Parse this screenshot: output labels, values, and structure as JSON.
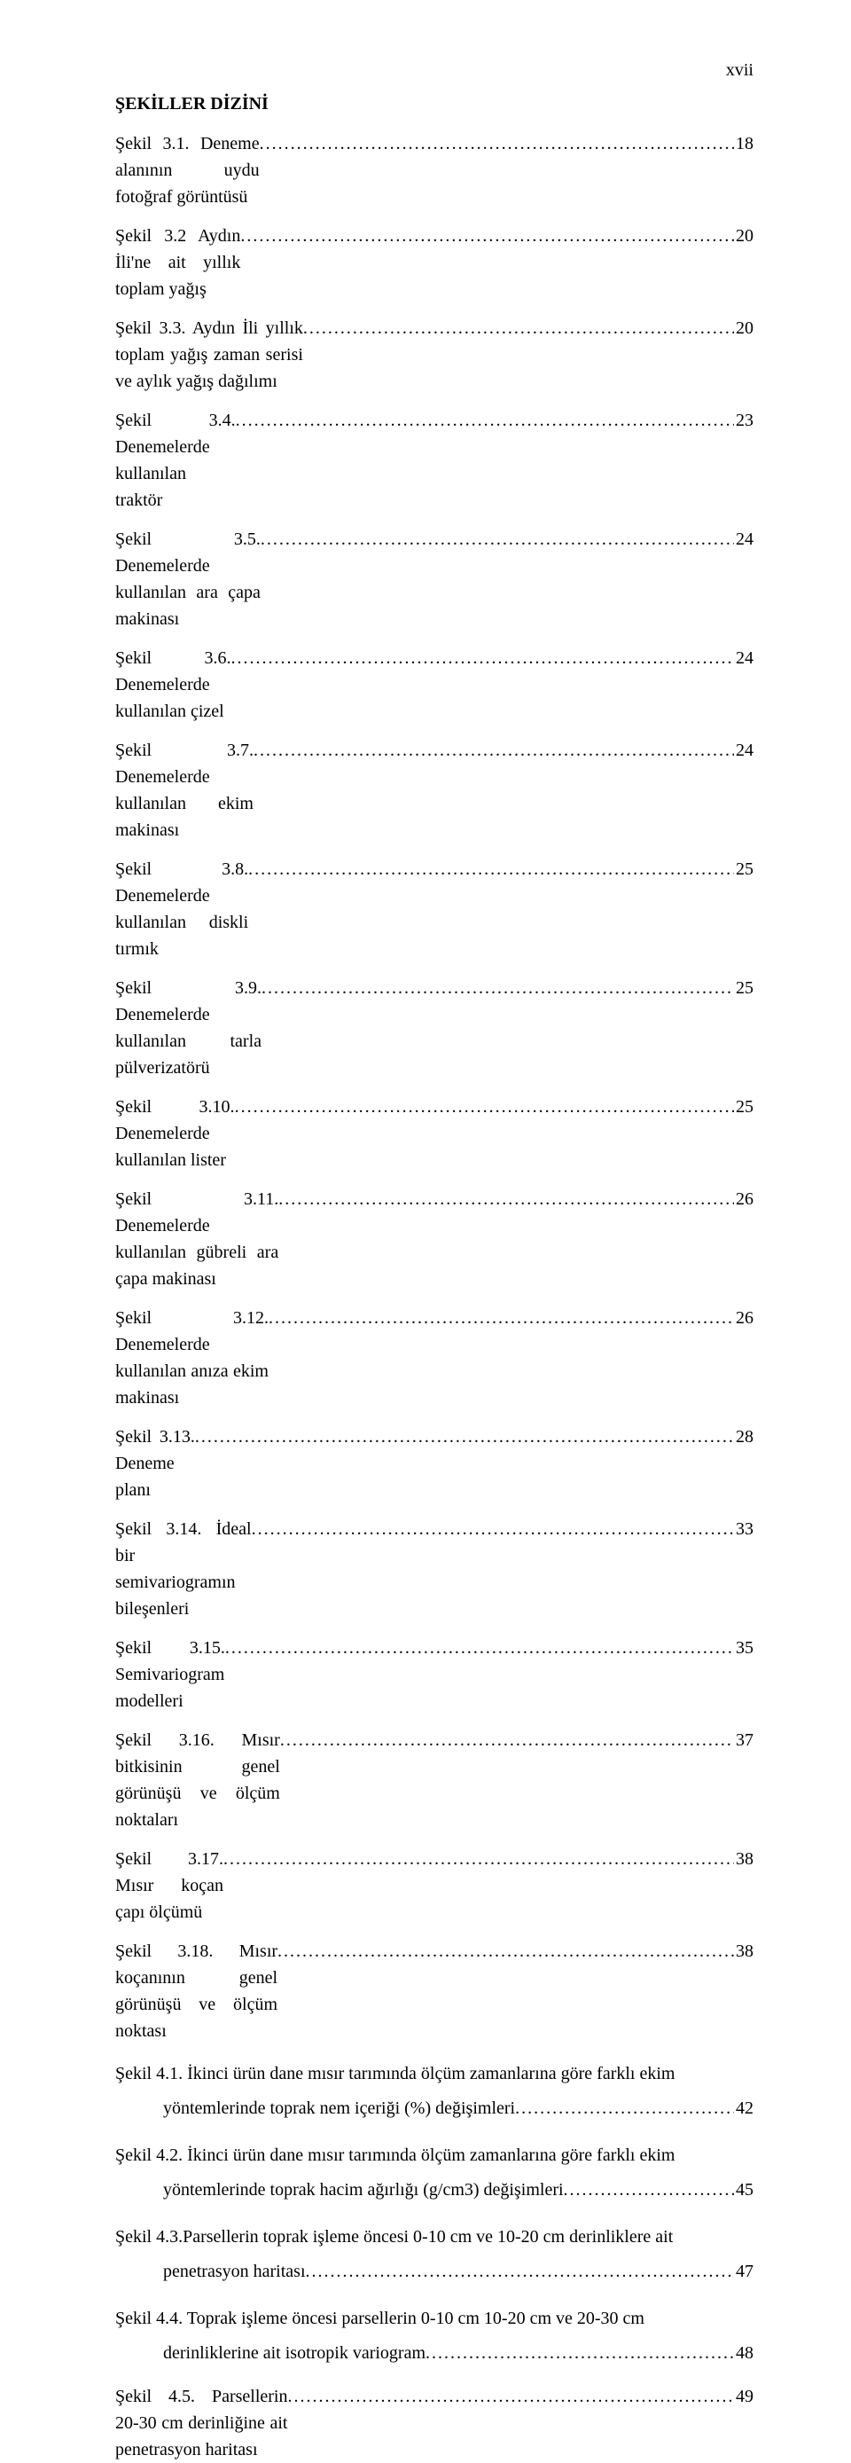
{
  "page_number_roman": "xvii",
  "heading": "ŞEKİLLER DİZİNİ",
  "leaders": "....................................................................................................................................................................................................",
  "entries": [
    {
      "prefix": "Şekil 3.1.",
      "desc": "Deneme alanının uydu fotoğraf görüntüsü",
      "page": "18"
    },
    {
      "prefix": "Şekil 3.2",
      "desc": "Aydın İli'ne ait yıllık toplam yağış",
      "page": "20"
    },
    {
      "prefix": "Şekil 3.3.",
      "desc": "Aydın İli yıllık toplam yağış zaman serisi ve aylık yağış dağılımı",
      "page": "20"
    },
    {
      "prefix": "Şekil 3.4.",
      "desc": "Denemelerde kullanılan traktör",
      "page": "23"
    },
    {
      "prefix": "Şekil 3.5.",
      "desc": "Denemelerde kullanılan ara çapa makinası",
      "page": "24"
    },
    {
      "prefix": "Şekil 3.6.",
      "desc": "Denemelerde kullanılan çizel",
      "page": "24"
    },
    {
      "prefix": "Şekil 3.7.",
      "desc": "Denemelerde kullanılan ekim makinası",
      "page": "24"
    },
    {
      "prefix": "Şekil 3.8.",
      "desc": "Denemelerde kullanılan diskli tırmık",
      "page": "25"
    },
    {
      "prefix": "Şekil 3.9.",
      "desc": "Denemelerde kullanılan tarla pülverizatörü",
      "page": "25"
    },
    {
      "prefix": "Şekil 3.10.",
      "desc": "Denemelerde kullanılan lister",
      "page": "25"
    },
    {
      "prefix": "Şekil 3.11.",
      "desc": "Denemelerde kullanılan gübreli ara çapa makinası",
      "page": "26"
    },
    {
      "prefix": "Şekil 3.12.",
      "desc": "Denemelerde kullanılan anıza ekim makinası",
      "page": "26"
    },
    {
      "prefix": "Şekil 3.13.",
      "desc": "Deneme planı",
      "page": "28"
    },
    {
      "prefix": "Şekil 3.14.",
      "desc": "İdeal bir semivariogramın bileşenleri",
      "page": "33"
    },
    {
      "prefix": "Şekil 3.15.",
      "desc": "Semivariogram modelleri",
      "page": "35"
    },
    {
      "prefix": "Şekil 3.16.",
      "desc": "Mısır bitkisinin genel görünüşü ve ölçüm noktaları",
      "page": "37"
    },
    {
      "prefix": "Şekil 3.17.",
      "desc": "Mısır koçan çapı ölçümü",
      "page": "38"
    },
    {
      "prefix": "Şekil 3.18.",
      "desc": "Mısır koçanının genel görünüşü ve ölçüm noktası",
      "page": "38"
    }
  ],
  "multi_entries": [
    {
      "prefix": "Şekil 4.1.",
      "first": "İkinci ürün dane mısır tarımında ölçüm zamanlarına göre farklı ekim",
      "last": "yöntemlerinde toprak nem içeriği (%)  değişimleri",
      "page": "42"
    },
    {
      "prefix": "Şekil 4.2.",
      "first": "İkinci ürün dane mısır tarımında ölçüm zamanlarına göre farklı ekim",
      "last": "yöntemlerinde toprak hacim ağırlığı (g/cm3)  değişimleri",
      "page": "45"
    },
    {
      "prefix": "Şekil 4.3.",
      "first": "Parsellerin toprak işleme öncesi 0-10 cm ve 10-20 cm derinliklere ait",
      "last": "penetrasyon haritası",
      "page": "47",
      "first_join": ""
    },
    {
      "prefix": "Şekil 4.4.",
      "first": "Toprak işleme öncesi parsellerin 0-10 cm 10-20 cm ve 20-30 cm",
      "last": "derinliklerine ait isotropik variogram",
      "page": "48"
    }
  ],
  "tail_entry": {
    "prefix": "Şekil 4.5.",
    "desc": "Parsellerin 20-30 cm derinliğine ait penetrasyon haritası",
    "page": "49"
  }
}
